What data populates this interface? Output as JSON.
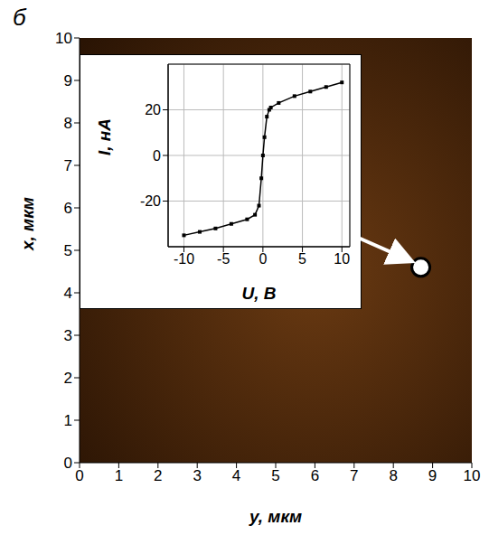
{
  "panel": "б",
  "chart_data": [
    {
      "type": "image",
      "x_label": "y, мкм",
      "y_label": "x, мкм",
      "xlim": [
        0,
        10
      ],
      "ylim": [
        0,
        10
      ],
      "xticks": [
        0,
        1,
        2,
        3,
        4,
        5,
        6,
        7,
        8,
        9,
        10
      ],
      "yticks": [
        0,
        1,
        2,
        3,
        4,
        5,
        6,
        7,
        8,
        9,
        10
      ],
      "color": "#6a3a12",
      "marker_point": {
        "x": 8.7,
        "y": 4.6
      }
    },
    {
      "type": "line",
      "x_label": "U, В",
      "y_label": "I, нА",
      "x": [
        -10,
        -8,
        -6,
        -4,
        -2,
        -1,
        -0.5,
        -0.2,
        0,
        0.2,
        0.5,
        0.8,
        1,
        2,
        4,
        6,
        8,
        10
      ],
      "values": [
        -35,
        -33.5,
        -32,
        -30,
        -28,
        -26,
        -22,
        -10,
        0,
        8,
        17,
        20,
        21,
        23,
        26,
        28,
        30,
        32
      ],
      "color": "#000000",
      "xlim": [
        -12,
        11
      ],
      "ylim": [
        -40,
        40
      ],
      "xticks": [
        -10,
        -5,
        0,
        5,
        10
      ],
      "yticks": [
        -20,
        0,
        20
      ],
      "grid": true,
      "marker": "square"
    }
  ]
}
